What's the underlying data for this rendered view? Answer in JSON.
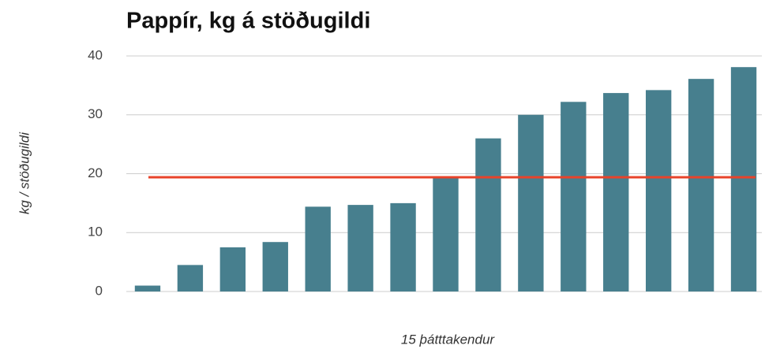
{
  "chart_data": {
    "type": "bar",
    "title": "Pappír, kg á stöðugildi",
    "ylabel": "kg / stöðugildi",
    "xlabel": "15 þátttakendur",
    "categories": [
      null,
      null,
      null,
      null,
      null,
      null,
      null,
      null,
      null,
      null,
      null,
      null,
      null,
      null,
      null
    ],
    "values": [
      1,
      4.5,
      7.5,
      8.4,
      14.4,
      14.7,
      15,
      19.5,
      26,
      30,
      32.2,
      33.7,
      34.2,
      36.1,
      38.1
    ],
    "color": "#477f8e",
    "reference_line": {
      "value": 19.4,
      "color": "#e8432a"
    },
    "ylim": [
      0,
      40
    ],
    "yticks": [
      0,
      10,
      20,
      30,
      40
    ],
    "grid": true
  }
}
